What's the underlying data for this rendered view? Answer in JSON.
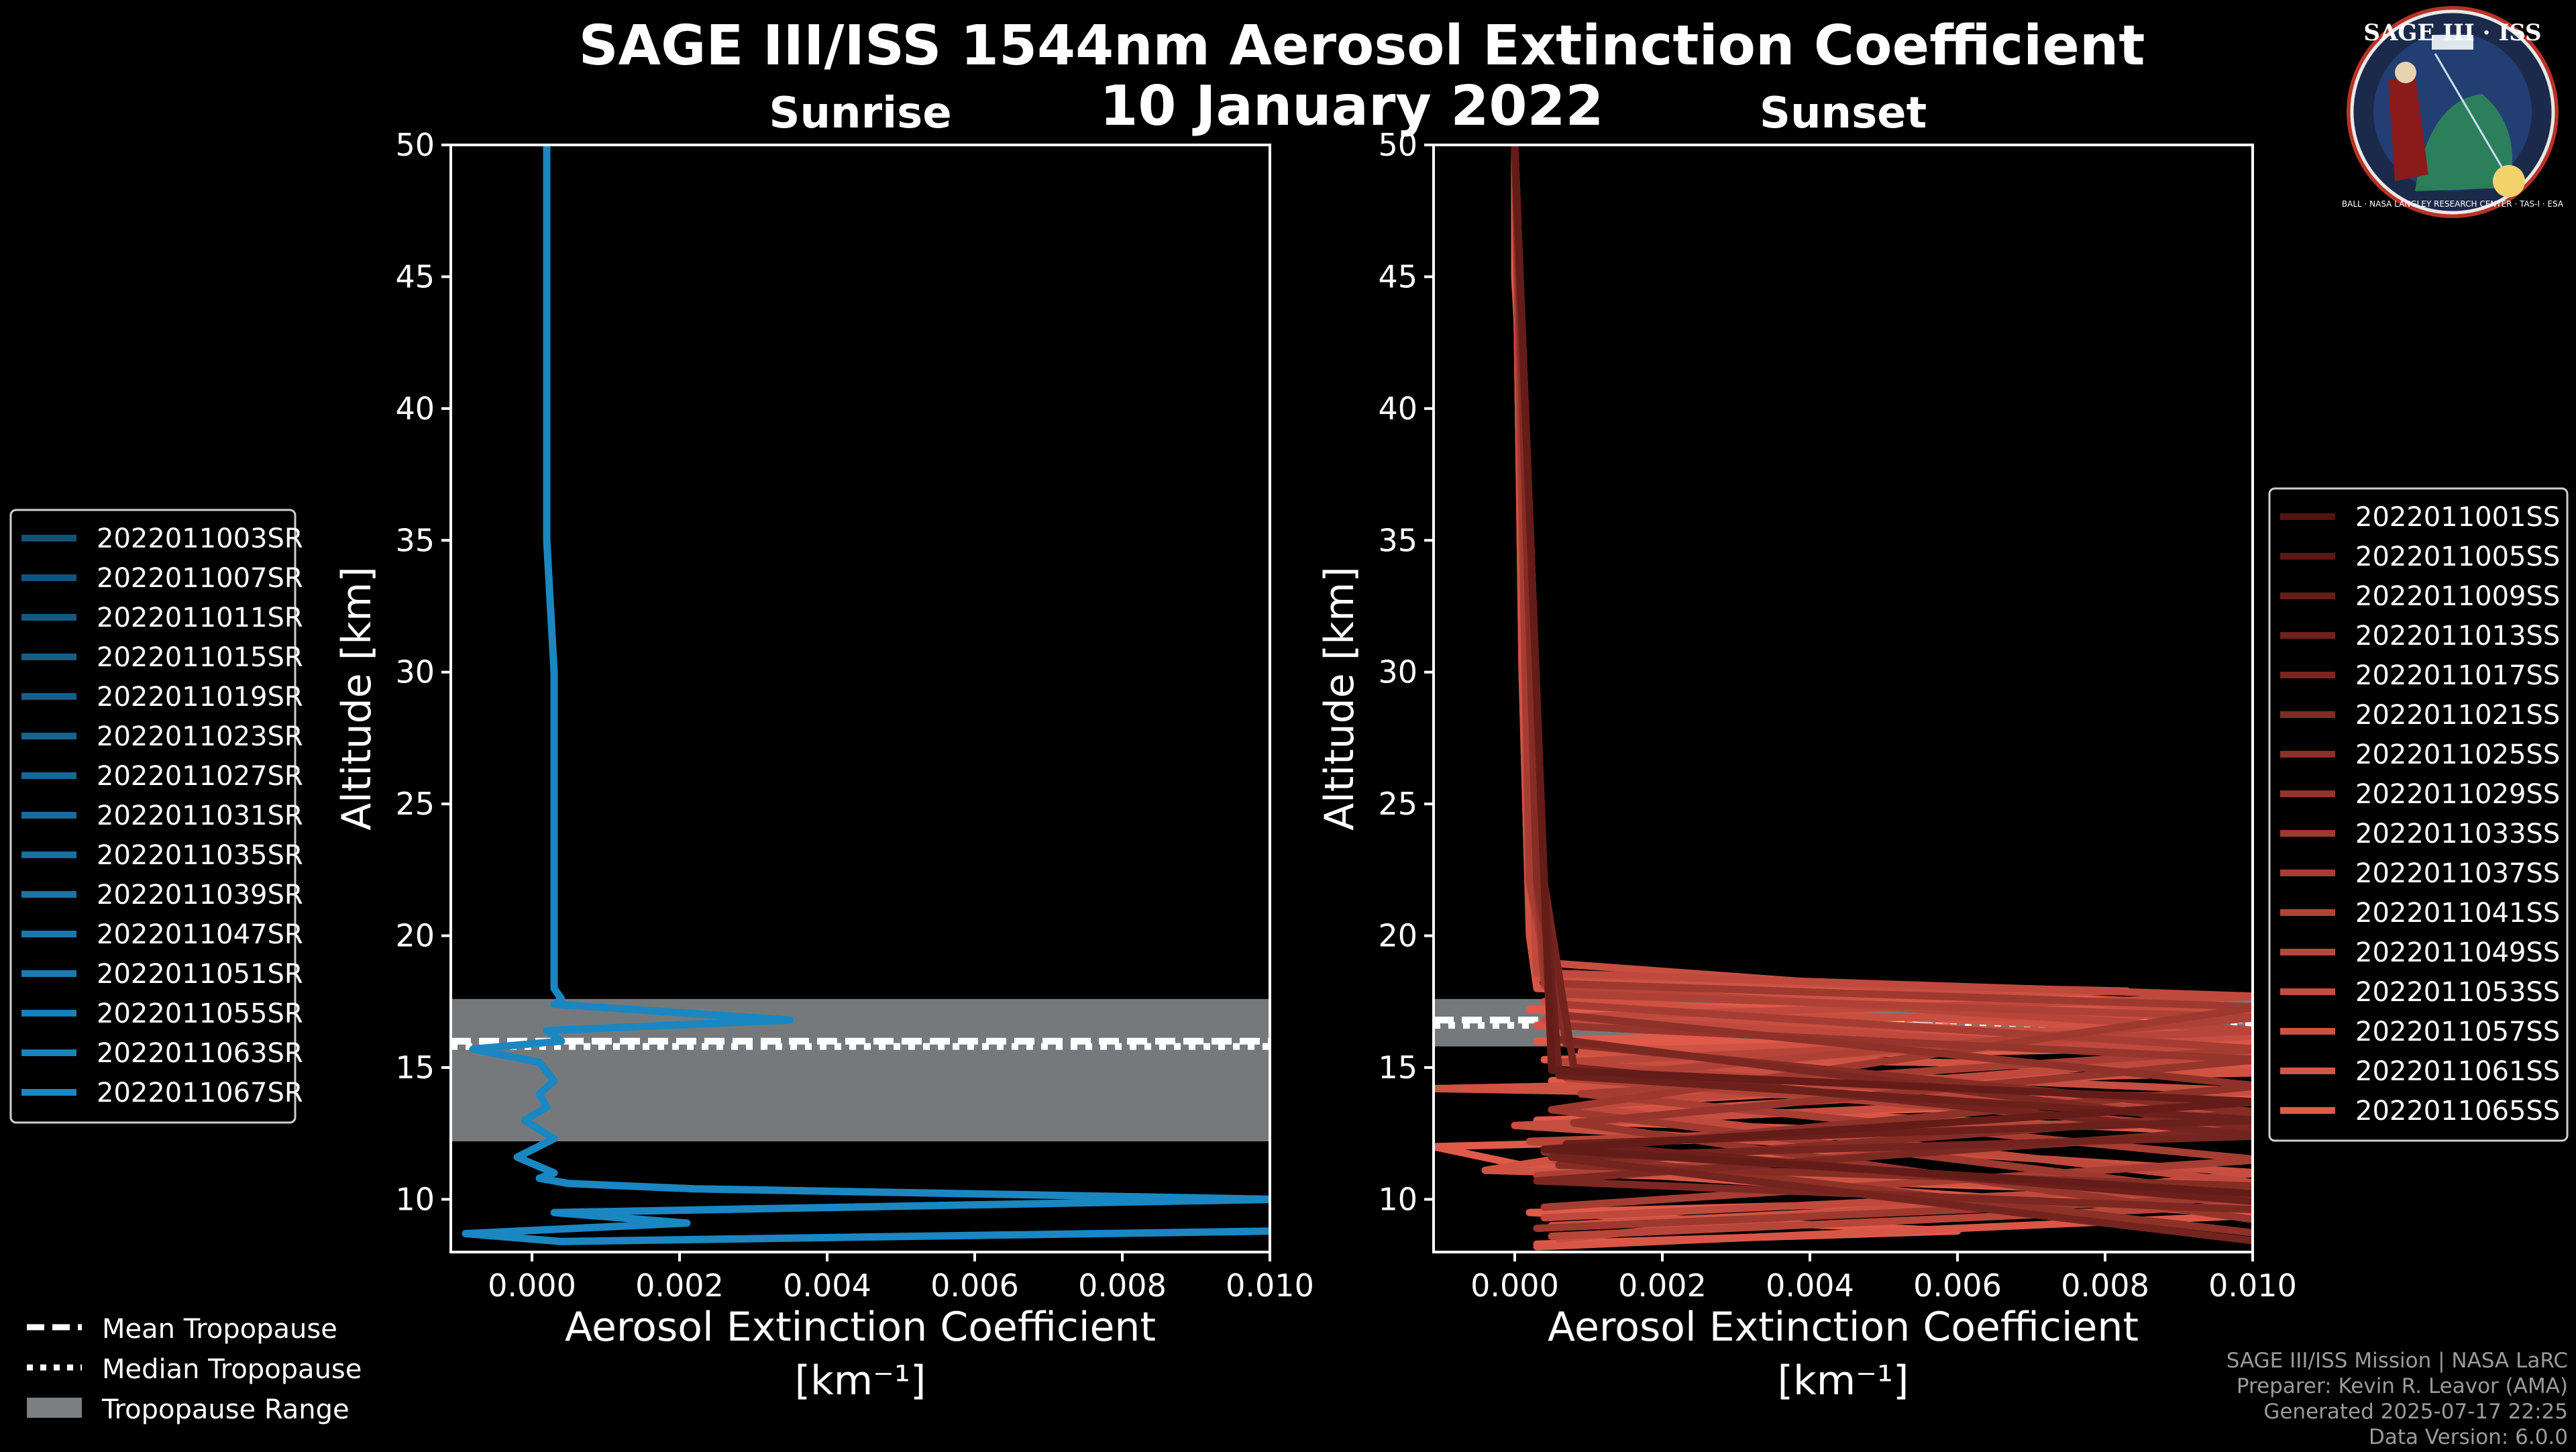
{
  "figure": {
    "title_line1": "SAGE III/ISS 1544nm Aerosol Extinction Coefficient",
    "title_line2": "10 January 2022",
    "footer": [
      "SAGE III/ISS Mission | NASA LaRC",
      "Preparer: Kevin R. Leavor (AMA)",
      "Generated 2025-07-17 22:25",
      "Data Version: 6.0.0"
    ],
    "logo_text": "SAGE III · ISS",
    "logo_ring_text": "BALL · NASA LANGLEY RESEARCH CENTER · TAS-I · ESA"
  },
  "colors": {
    "sunrise": "#1a87c2",
    "sunset": "#e05a4a",
    "tropo_fill": "#7c7f82"
  },
  "common_legend": {
    "mean": "Mean Tropopause",
    "median": "Median Tropopause",
    "range": "Tropopause Range"
  },
  "chart_data": [
    {
      "type": "line",
      "panel": "Sunrise",
      "title": "Sunrise",
      "xlabel": "Aerosol Extinction Coefficient",
      "xunit": "[km⁻¹]",
      "ylabel": "Altitude [km]",
      "xlim": [
        -0.0011,
        0.01
      ],
      "ylim": [
        8,
        50
      ],
      "xticks": [
        0.0,
        0.002,
        0.004,
        0.006,
        0.008,
        0.01
      ],
      "xtick_labels": [
        "0.000",
        "0.002",
        "0.004",
        "0.006",
        "0.008",
        "0.010"
      ],
      "yticks": [
        10,
        15,
        20,
        25,
        30,
        35,
        40,
        45,
        50
      ],
      "tropopause": {
        "mean": 16.0,
        "median": 15.8,
        "range": [
          12.2,
          17.6
        ]
      },
      "legend": [
        "2022011003SR",
        "2022011007SR",
        "2022011011SR",
        "2022011015SR",
        "2022011019SR",
        "2022011023SR",
        "2022011027SR",
        "2022011031SR",
        "2022011035SR",
        "2022011039SR",
        "2022011047SR",
        "2022011051SR",
        "2022011055SR",
        "2022011063SR",
        "2022011067SR"
      ],
      "series": [
        {
          "name": "2022011067SR",
          "x": [
            0.0002,
            0.0002,
            0.0002,
            0.0002,
            0.0003,
            0.0003,
            0.0003,
            0.0003,
            0.0004,
            0.0003,
            0.0035,
            0.0002,
            0.0004,
            -0.0008,
            0.0001,
            0.0003,
            0.0001,
            0.0002,
            -0.0001,
            0.0003,
            -0.0002,
            0.0003,
            0.0001,
            0.0005,
            0.0022,
            0.0101,
            0.0003,
            0.0021,
            -0.0009,
            0.0004,
            0.0101
          ],
          "y": [
            50,
            45,
            40,
            35,
            30,
            25,
            20,
            18,
            17.6,
            17.4,
            16.8,
            16.4,
            16.0,
            15.7,
            15.2,
            14.5,
            14.0,
            13.5,
            13.0,
            12.3,
            11.6,
            11.0,
            10.8,
            10.6,
            10.4,
            10.0,
            9.5,
            9.1,
            8.7,
            8.4,
            8.8
          ]
        }
      ]
    },
    {
      "type": "line",
      "panel": "Sunset",
      "title": "Sunset",
      "xlabel": "Aerosol Extinction Coefficient",
      "xunit": "[km⁻¹]",
      "ylabel": "Altitude [km]",
      "xlim": [
        -0.0011,
        0.01
      ],
      "ylim": [
        8,
        50
      ],
      "xticks": [
        0.0,
        0.002,
        0.004,
        0.006,
        0.008,
        0.01
      ],
      "xtick_labels": [
        "0.000",
        "0.002",
        "0.004",
        "0.006",
        "0.008",
        "0.010"
      ],
      "yticks": [
        10,
        15,
        20,
        25,
        30,
        35,
        40,
        45,
        50
      ],
      "tropopause": {
        "mean": 16.8,
        "median": 16.6,
        "range": [
          15.8,
          17.6
        ]
      },
      "legend": [
        "2022011001SS",
        "2022011005SS",
        "2022011009SS",
        "2022011013SS",
        "2022011017SS",
        "2022011021SS",
        "2022011025SS",
        "2022011029SS",
        "2022011033SS",
        "2022011037SS",
        "2022011041SS",
        "2022011049SS",
        "2022011053SS",
        "2022011057SS",
        "2022011061SS",
        "2022011065SS"
      ],
      "series": [
        {
          "name": "2022011065SS",
          "x": [
            0.0,
            0.0,
            0.0001,
            0.0001,
            0.0002,
            0.0002,
            0.0003,
            0.0003,
            0.0004,
            0.0088,
            0.0002,
            0.006,
            0.0003,
            0.0101,
            0.0004,
            0.0045,
            0.0005,
            0.0101,
            0.0003,
            0.006,
            -0.0011,
            0.0006,
            0.0101,
            0.0002,
            0.006,
            0.0003
          ],
          "y": [
            50,
            45,
            40,
            35,
            30,
            25,
            20,
            19,
            18.3,
            17.5,
            17.2,
            16.5,
            16.0,
            15.8,
            15.3,
            15.0,
            14.5,
            13.8,
            13.0,
            12.5,
            12.0,
            11.0,
            10.2,
            9.5,
            8.8,
            8.3
          ]
        },
        {
          "name": "2022011061SS",
          "x": [
            0.0,
            0.0001,
            0.0002,
            0.0003,
            0.0101,
            0.0003,
            0.0101,
            0.0008,
            0.0101,
            0.001,
            0.0101,
            0.0003,
            0.0101,
            0.0003
          ],
          "y": [
            50,
            30,
            20,
            18,
            17.2,
            16.6,
            16.0,
            15.4,
            15.0,
            13.6,
            12.5,
            11.2,
            9.4,
            8.2
          ]
        },
        {
          "name": "2022011057SS",
          "x": [
            0.0,
            0.0001,
            0.0002,
            0.0003,
            0.0083,
            0.0004,
            0.0101,
            0.0009,
            0.0101,
            -0.0011,
            0.0051,
            0.0009,
            0.0016,
            -0.0004,
            0.0101,
            0.0005
          ],
          "y": [
            50,
            30,
            20,
            18.4,
            17.9,
            17.5,
            16.3,
            15.6,
            14.8,
            14.2,
            13.9,
            13.2,
            12.0,
            11.1,
            10.3,
            9.0
          ]
        },
        {
          "name": "2022011053SS",
          "x": [
            0.0,
            0.0002,
            0.0003,
            0.0101,
            0.0004,
            0.0101,
            0.0012,
            0.0101,
            0.0,
            0.0101,
            0.0006
          ],
          "y": [
            50,
            25,
            19,
            17.0,
            16.8,
            16.2,
            15.1,
            14.1,
            12.8,
            11.0,
            8.5
          ]
        },
        {
          "name": "2022011049SS",
          "x": [
            0.0,
            0.0002,
            0.0003,
            0.0101,
            0.0005,
            0.0101,
            0.0008,
            0.0101,
            0.0004
          ],
          "y": [
            50,
            25,
            18.6,
            17.7,
            16.9,
            15.5,
            13.5,
            10.6,
            9.3
          ]
        },
        {
          "name": "2022011041SS",
          "x": [
            0.0,
            0.0002,
            0.0004,
            0.0101,
            0.0006,
            0.0101,
            0.0002,
            0.0101,
            0.0005
          ],
          "y": [
            50,
            25,
            18.1,
            16.4,
            15.2,
            13.1,
            12.2,
            9.8,
            8.6
          ]
        },
        {
          "name": "2022011037SS",
          "x": [
            0.0,
            0.0002,
            0.0005,
            0.0101,
            0.0007,
            0.0101,
            0.0003
          ],
          "y": [
            50,
            22,
            17.8,
            16.9,
            14.6,
            12.6,
            10.9
          ]
        },
        {
          "name": "2022011033SS",
          "x": [
            0.0,
            0.0002,
            0.0006,
            0.0101,
            0.0009,
            0.0101,
            0.0004
          ],
          "y": [
            50,
            22,
            17.4,
            15.7,
            14.0,
            11.5,
            9.7
          ]
        },
        {
          "name": "2022011029SS",
          "x": [
            0.0,
            0.0003,
            0.0004,
            0.0101,
            0.0005,
            0.0101,
            0.0003
          ],
          "y": [
            50,
            22,
            18.2,
            17.3,
            13.4,
            10.1,
            8.9
          ]
        },
        {
          "name": "2022011025SS",
          "x": [
            0.0,
            0.0003,
            0.0005,
            0.0101,
            0.0008,
            0.0101
          ],
          "y": [
            50,
            22,
            16.6,
            15.3,
            12.9,
            9.2
          ]
        },
        {
          "name": "2022011021SS",
          "x": [
            0.0,
            0.0003,
            0.0006,
            0.0101,
            0.0004,
            0.0101
          ],
          "y": [
            50,
            22,
            17.0,
            14.3,
            11.8,
            8.7
          ]
        },
        {
          "name": "2022011017SS",
          "x": [
            0.0,
            0.0003,
            0.0007,
            0.0101,
            0.0006,
            0.0101
          ],
          "y": [
            50,
            22,
            15.9,
            13.3,
            11.3,
            10.5
          ]
        },
        {
          "name": "2022011013SS",
          "x": [
            0.0,
            0.0004,
            0.0005,
            0.0101,
            0.0003,
            0.0101
          ],
          "y": [
            50,
            22,
            16.1,
            12.7,
            10.7,
            9.6
          ]
        },
        {
          "name": "2022011009SS",
          "x": [
            0.0,
            0.0004,
            0.0008,
            0.0101,
            0.0005,
            0.0101
          ],
          "y": [
            50,
            22,
            15.0,
            12.4,
            11.6,
            8.4
          ]
        },
        {
          "name": "2022011005SS",
          "x": [
            0.0,
            0.0004,
            0.0006,
            0.0101,
            0.0007,
            0.0101
          ],
          "y": [
            50,
            22,
            14.7,
            13.0,
            12.1,
            9.9
          ]
        },
        {
          "name": "2022011001SS",
          "x": [
            0.0,
            0.0004,
            0.0005,
            0.0101,
            0.0004,
            0.0101
          ],
          "y": [
            50,
            22,
            14.9,
            13.7,
            11.9,
            10.2
          ]
        }
      ]
    }
  ]
}
